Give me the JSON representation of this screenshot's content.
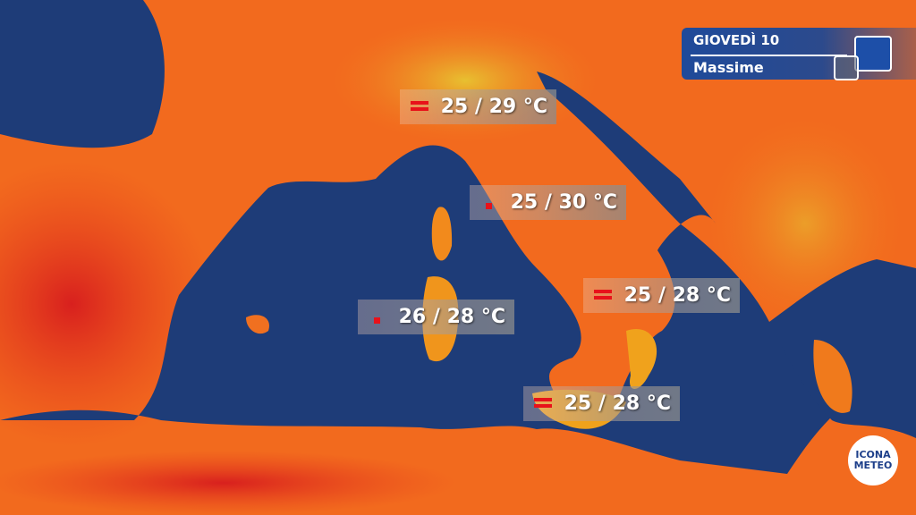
{
  "header": {
    "day": "GIOVEDÌ 10",
    "subtitle": "Massime"
  },
  "colors": {
    "sea": "#1e3c78",
    "land_hot": "#e8321e",
    "land_warm": "#f57a1a",
    "land_mild": "#f0a820",
    "accent": "#1d4fa8",
    "trend_icon": "#e8121a"
  },
  "labels": [
    {
      "region": "north",
      "text": "25 / 29 °C",
      "icon": "equal-icon"
    },
    {
      "region": "center-tyrrhenian",
      "text": "25 / 30 °C",
      "icon": "up-square-icon"
    },
    {
      "region": "south-adriatic",
      "text": "25 / 28 °C",
      "icon": "equal-icon"
    },
    {
      "region": "sardinia",
      "text": "26 / 28 °C",
      "icon": "up-square-icon"
    },
    {
      "region": "sicily",
      "text": "25 / 28 °C",
      "icon": "equal-icon"
    }
  ],
  "logo": {
    "line1": "ICONA",
    "line2": "METEO"
  }
}
